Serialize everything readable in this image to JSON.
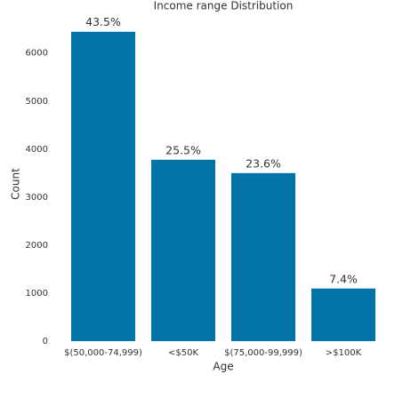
{
  "chart_data": {
    "type": "bar",
    "title": "Income range Distribution",
    "x_label": "Age",
    "y_label": "Count",
    "categories": [
      "$(50,000-74,999)",
      "<$50K",
      "$(75,000-99,999)",
      ">$100K"
    ],
    "values": [
      6444,
      3778,
      3500,
      1096
    ],
    "bar_labels": [
      "43.5%",
      "25.5%",
      "23.6%",
      "7.4%"
    ],
    "color": "#0173a7",
    "ylim": [
      0,
      6550
    ],
    "yticks": [
      0,
      1000,
      2000,
      3000,
      4000,
      5000,
      6000
    ],
    "grid": false
  }
}
